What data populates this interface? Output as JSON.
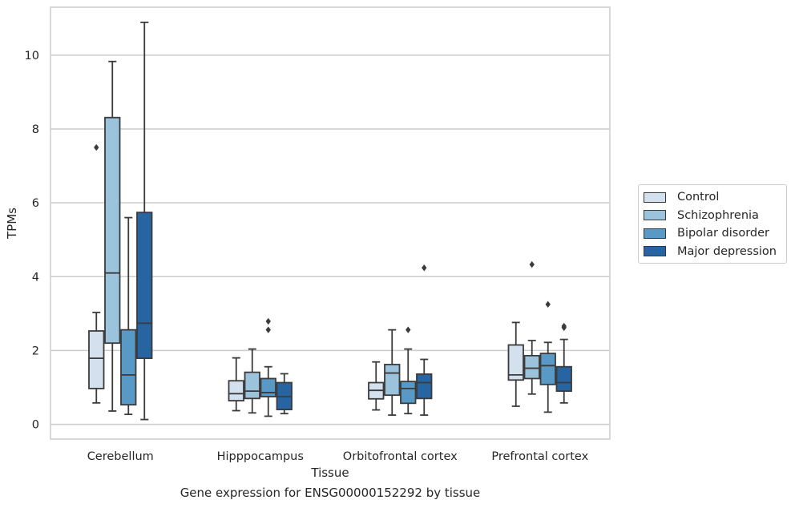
{
  "caption": "Gene expression for ENSG00000152292 by tissue",
  "colors": {
    "Control": "#d3e1ef",
    "Schizophrenia": "#9cc3dc",
    "Bipolar disorder": "#5899c5",
    "Major depression": "#2764a2",
    "grid": "#cccccc",
    "line": "#3b3b3b"
  },
  "legend": {
    "placement": "right-center, outside plot",
    "items": [
      "Control",
      "Schizophrenia",
      "Bipolar disorder",
      "Major depression"
    ]
  },
  "chart_data": {
    "type": "box",
    "title": "",
    "xlabel": "Tissue",
    "ylabel": "TPMs",
    "ylim": [
      -0.4,
      11.3
    ],
    "yticks": [
      0,
      2,
      4,
      6,
      8,
      10
    ],
    "grid": "horizontal",
    "categories": [
      "Cerebellum",
      "Hipppocampus",
      "Orbitofrontal cortex",
      "Prefrontal cortex"
    ],
    "series": [
      {
        "name": "Control",
        "boxes": [
          {
            "whislo": 0.58,
            "q1": 0.97,
            "med": 1.79,
            "q3": 2.53,
            "whishi": 3.03,
            "fliers": [
              7.5
            ]
          },
          {
            "whislo": 0.37,
            "q1": 0.64,
            "med": 0.83,
            "q3": 1.18,
            "whishi": 1.8,
            "fliers": []
          },
          {
            "whislo": 0.39,
            "q1": 0.69,
            "med": 0.92,
            "q3": 1.13,
            "whishi": 1.69,
            "fliers": []
          },
          {
            "whislo": 0.49,
            "q1": 1.2,
            "med": 1.34,
            "q3": 2.15,
            "whishi": 2.76,
            "fliers": []
          }
        ]
      },
      {
        "name": "Schizophrenia",
        "boxes": [
          {
            "whislo": 0.36,
            "q1": 2.2,
            "med": 4.1,
            "q3": 8.31,
            "whishi": 9.83,
            "fliers": []
          },
          {
            "whislo": 0.31,
            "q1": 0.7,
            "med": 0.9,
            "q3": 1.41,
            "whishi": 2.04,
            "fliers": []
          },
          {
            "whislo": 0.25,
            "q1": 0.79,
            "med": 1.39,
            "q3": 1.62,
            "whishi": 2.56,
            "fliers": []
          },
          {
            "whislo": 0.82,
            "q1": 1.24,
            "med": 1.52,
            "q3": 1.86,
            "whishi": 2.27,
            "fliers": [
              4.33
            ]
          }
        ]
      },
      {
        "name": "Bipolar disorder",
        "boxes": [
          {
            "whislo": 0.27,
            "q1": 0.53,
            "med": 1.34,
            "q3": 2.56,
            "whishi": 5.6,
            "fliers": []
          },
          {
            "whislo": 0.22,
            "q1": 0.75,
            "med": 0.86,
            "q3": 1.24,
            "whishi": 1.56,
            "fliers": [
              2.56,
              2.79
            ]
          },
          {
            "whislo": 0.29,
            "q1": 0.57,
            "med": 0.97,
            "q3": 1.16,
            "whishi": 2.04,
            "fliers": [
              2.56
            ]
          },
          {
            "whislo": 0.33,
            "q1": 1.08,
            "med": 1.59,
            "q3": 1.92,
            "whishi": 2.22,
            "fliers": [
              3.25
            ]
          }
        ]
      },
      {
        "name": "Major depression",
        "boxes": [
          {
            "whislo": 0.13,
            "q1": 1.79,
            "med": 2.74,
            "q3": 5.74,
            "whishi": 10.89,
            "fliers": []
          },
          {
            "whislo": 0.29,
            "q1": 0.4,
            "med": 0.75,
            "q3": 1.13,
            "whishi": 1.37,
            "fliers": []
          },
          {
            "whislo": 0.25,
            "q1": 0.7,
            "med": 1.13,
            "q3": 1.36,
            "whishi": 1.76,
            "fliers": [
              4.24
            ]
          },
          {
            "whislo": 0.58,
            "q1": 0.9,
            "med": 1.13,
            "q3": 1.56,
            "whishi": 2.3,
            "fliers": [
              2.62,
              2.66
            ]
          }
        ]
      }
    ]
  }
}
